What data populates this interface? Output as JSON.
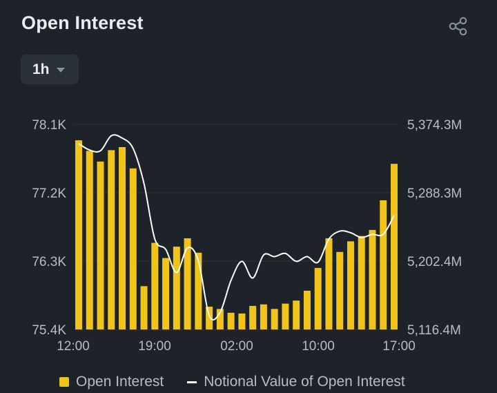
{
  "header": {
    "title": "Open Interest",
    "share_icon": "share-icon"
  },
  "interval": {
    "selected": "1h",
    "icon": "caret-down-icon"
  },
  "colors": {
    "background": "#1e2329",
    "bar": "#f0c419",
    "line": "#ffffff",
    "grid": "#2b3139",
    "text": "#b7bdc6"
  },
  "legend": {
    "bar_label": "Open Interest",
    "line_label": "Notional Value of Open Interest"
  },
  "chart_data": {
    "type": "bar",
    "title": "Open Interest",
    "x_tick_labels": [
      "12:00",
      "19:00",
      "02:00",
      "10:00",
      "17:00"
    ],
    "y_left": {
      "tick_labels": [
        "78.1K",
        "77.2K",
        "76.3K",
        "75.4K"
      ],
      "range": [
        75400,
        78100
      ]
    },
    "y_right": {
      "tick_labels": [
        "5,374.3M",
        "5,288.3M",
        "5,202.4M",
        "5,116.4M"
      ],
      "range": [
        5116.4,
        5374.3
      ]
    },
    "grid": true,
    "legend_position": "bottom",
    "series": [
      {
        "name": "Open Interest",
        "type": "bar",
        "axis": "left",
        "values": [
          77.89,
          77.75,
          77.61,
          77.76,
          77.8,
          77.52,
          75.97,
          76.54,
          76.34,
          76.49,
          76.6,
          76.41,
          75.7,
          75.67,
          75.62,
          75.61,
          75.71,
          75.73,
          75.67,
          75.74,
          75.78,
          75.91,
          76.21,
          76.6,
          76.42,
          76.56,
          76.63,
          76.71,
          77.1,
          77.58
        ]
      },
      {
        "name": "Notional Value of Open Interest",
        "type": "line",
        "axis": "right",
        "values": [
          5350,
          5342,
          5341,
          5360,
          5357,
          5344,
          5300,
          5230,
          5217,
          5188,
          5219,
          5203,
          5134,
          5138,
          5178,
          5202,
          5181,
          5210,
          5208,
          5212,
          5202,
          5208,
          5201,
          5230,
          5240,
          5238,
          5232,
          5236,
          5236,
          5260
        ]
      }
    ],
    "units": {
      "left": "K contracts",
      "right": "M USD"
    }
  }
}
